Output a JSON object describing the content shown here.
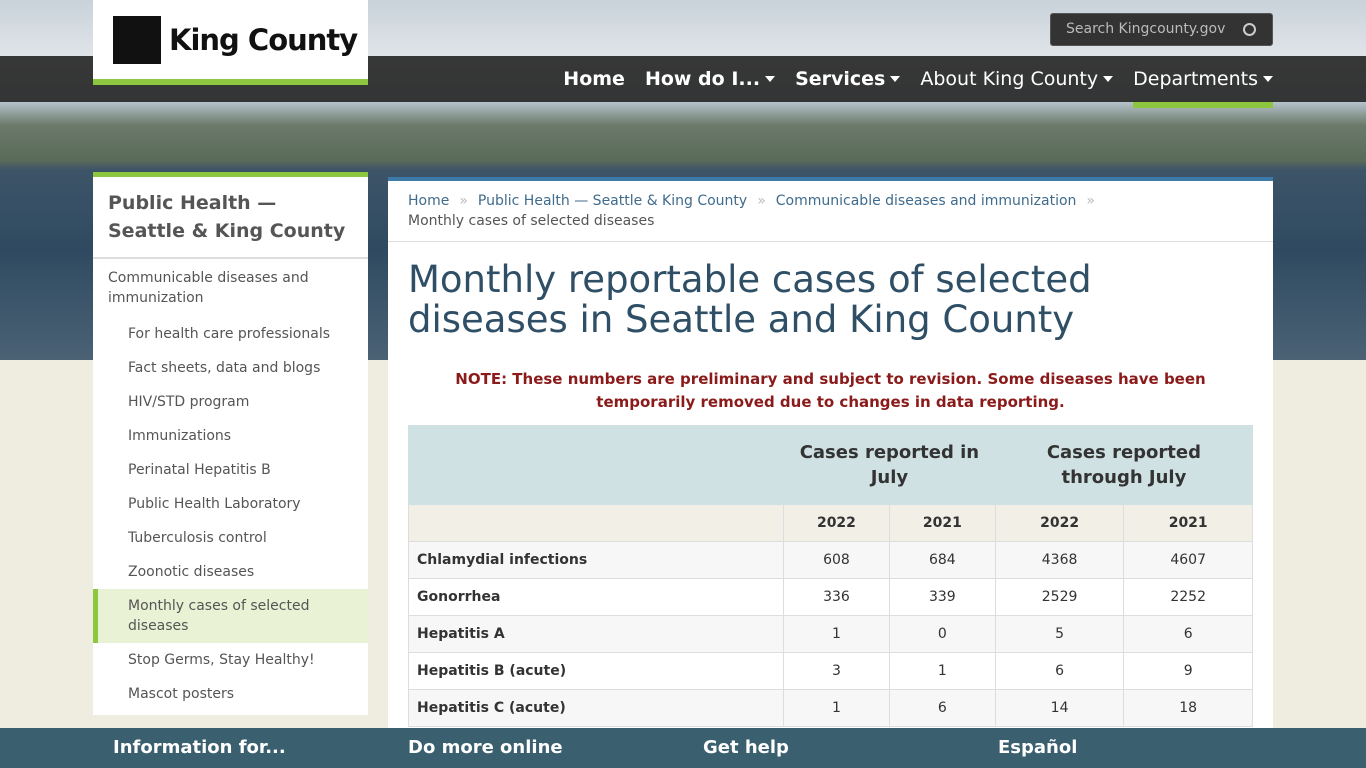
{
  "header": {
    "logo": "King County",
    "search_placeholder": "Search Kingcounty.gov",
    "nav": [
      {
        "label": "Home",
        "dropdown": false
      },
      {
        "label": "How do I...",
        "dropdown": true
      },
      {
        "label": "Services",
        "dropdown": true
      },
      {
        "label": "About King County",
        "dropdown": true
      },
      {
        "label": "Departments",
        "dropdown": true
      }
    ]
  },
  "sidebar": {
    "title": "Public Health — Seattle & King County",
    "section": "Communicable diseases and immunization",
    "links": [
      {
        "label": "For health care professionals",
        "current": false
      },
      {
        "label": "Fact sheets, data and blogs",
        "current": false
      },
      {
        "label": "HIV/STD program",
        "current": false
      },
      {
        "label": "Immunizations",
        "current": false
      },
      {
        "label": "Perinatal Hepatitis B",
        "current": false
      },
      {
        "label": "Public Health Laboratory",
        "current": false
      },
      {
        "label": "Tuberculosis control",
        "current": false
      },
      {
        "label": "Zoonotic diseases",
        "current": false
      },
      {
        "label": "Monthly cases of selected diseases",
        "current": true
      },
      {
        "label": "Stop Germs, Stay Healthy!",
        "current": false
      },
      {
        "label": "Mascot posters",
        "current": false
      }
    ]
  },
  "breadcrumb": [
    "Home",
    "Public Health — Seattle & King County",
    "Communicable diseases and immunization",
    "Monthly cases of selected diseases"
  ],
  "page": {
    "title": "Monthly reportable cases of selected diseases in Seattle and King County",
    "note": "NOTE: These numbers are preliminary and subject to revision. Some diseases have been temporarily removed due to changes in data reporting."
  },
  "table": {
    "group_headers": [
      "Cases reported in July",
      "Cases reported through July"
    ],
    "year_headers": [
      2022,
      2021,
      2022,
      2021
    ],
    "rows": [
      [
        "Chlamydial infections",
        608,
        684,
        4368,
        4607
      ],
      [
        "Gonorrhea",
        336,
        339,
        2529,
        2252
      ],
      [
        "Hepatitis A",
        1,
        0,
        5,
        6
      ],
      [
        "Hepatitis B (acute)",
        3,
        1,
        6,
        9
      ],
      [
        "Hepatitis C  (acute)",
        1,
        6,
        14,
        18
      ]
    ]
  },
  "footer": [
    "Information for...",
    "Do more online",
    "Get help",
    "Español"
  ]
}
